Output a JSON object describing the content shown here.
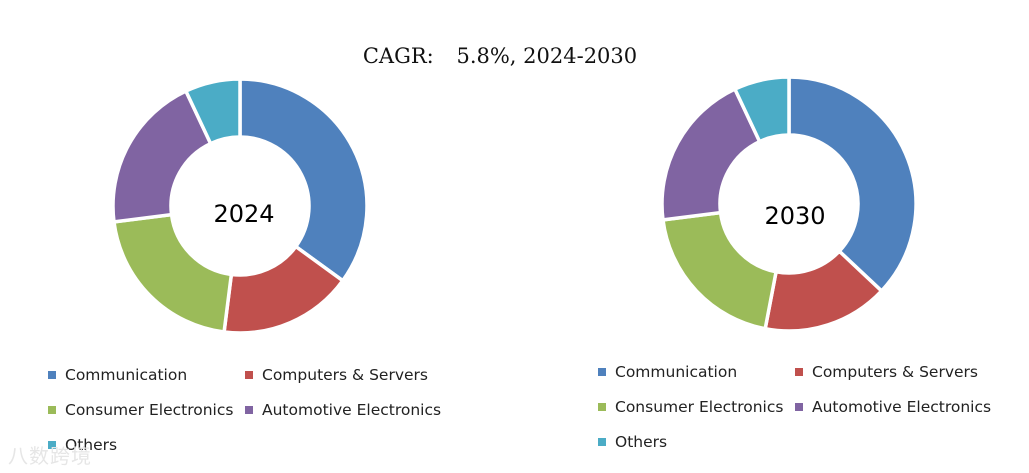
{
  "header": {
    "cagr_label": "CAGR:",
    "cagr_value": "5.8%, 2024-2030"
  },
  "colors": {
    "communication": "#4f81bd",
    "computers_servers": "#c0504d",
    "consumer_electronics": "#9bbb59",
    "automotive_electronics": "#8064a2",
    "others": "#4bacc6"
  },
  "watermark": "八数跨境",
  "chart_data": [
    {
      "type": "pie",
      "title": "2024",
      "categories": [
        "Communication",
        "Computers & Servers",
        "Consumer Electronics",
        "Automotive Electronics",
        "Others"
      ],
      "values": [
        35,
        17,
        21,
        20,
        7
      ],
      "legend_position": "bottom"
    },
    {
      "type": "pie",
      "title": "2030",
      "categories": [
        "Communication",
        "Computers & Servers",
        "Consumer Electronics",
        "Automotive Electronics",
        "Others"
      ],
      "values": [
        37,
        16,
        20,
        20,
        7
      ],
      "legend_position": "bottom"
    }
  ]
}
